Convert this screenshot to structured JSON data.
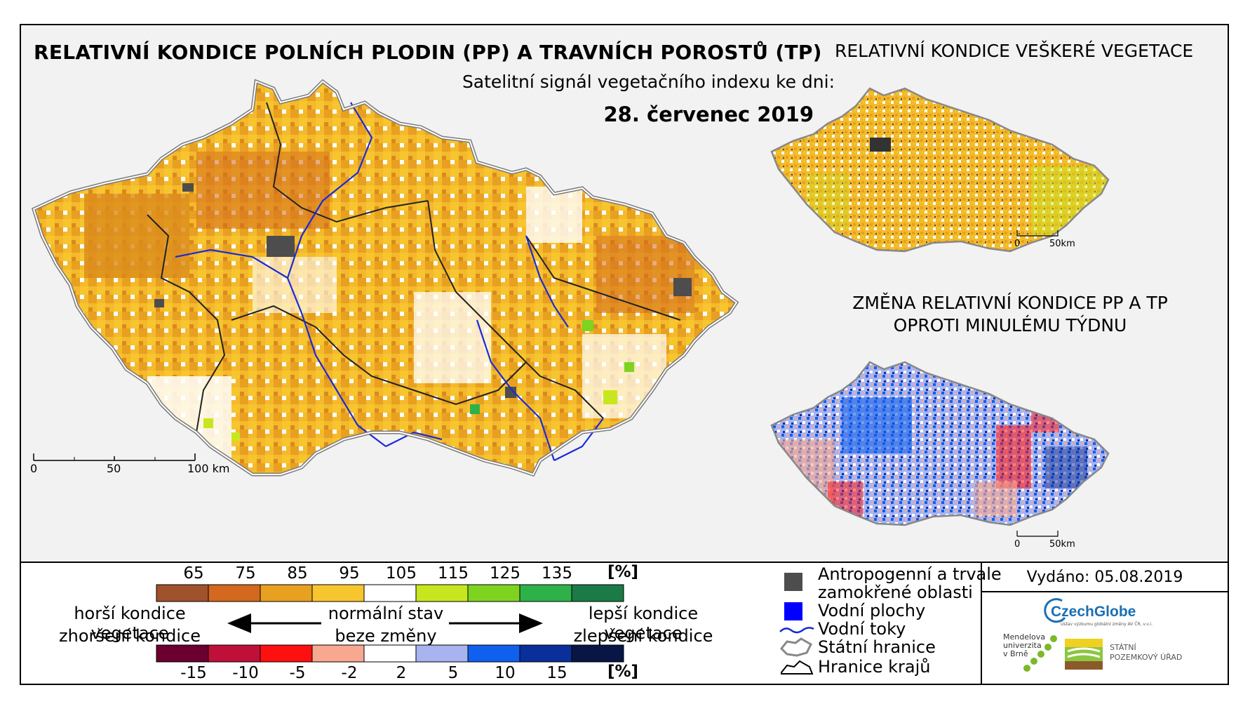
{
  "titles": {
    "main": "RELATIVNÍ KONDICE POLNÍCH PLODIN (PP) A TRAVNÍCH POROSTŮ (TP)",
    "all_vegetation": "RELATIVNÍ KONDICE VEŠKERÉ VEGETACE",
    "subtitle": "Satelitní signál vegetačního indexu ke dni:",
    "date": "28. červenec 2019",
    "change_line1": "ZMĚNA RELATIVNÍ KONDICE PP A TP",
    "change_line2": "OPROTI MINULÉMU TÝDNU"
  },
  "scale_bars": {
    "main": [
      "0",
      "50",
      "100 km"
    ],
    "small_top": [
      "0",
      "50km"
    ],
    "small_bottom": [
      "0",
      "50km"
    ]
  },
  "legend_condition": {
    "values": [
      "65",
      "75",
      "85",
      "95",
      "105",
      "115",
      "125",
      "135"
    ],
    "unit": "[%]",
    "colors": [
      "#a0522d",
      "#d2691e",
      "#e8a020",
      "#f7c52e",
      "#ffffff",
      "#c8e61e",
      "#7ed321",
      "#2fb14a",
      "#1b7a45"
    ]
  },
  "legend_change": {
    "values": [
      "-15",
      "-10",
      "-5",
      "-2",
      "2",
      "5",
      "10",
      "15"
    ],
    "unit": "[%]",
    "colors": [
      "#6b0030",
      "#c0103a",
      "#ff1010",
      "#f8a890",
      "#ffffff",
      "#a8b4f0",
      "#1060f0",
      "#0a2e9a",
      "#071645"
    ]
  },
  "legend_texts": {
    "worse_1": "horší kondice vegetace",
    "worse_2": "zhoršení kondice",
    "normal_1": "normální stav",
    "normal_2": "beze změny",
    "better_1": "lepší kondice vegetace",
    "better_2": "zlepšení kondice"
  },
  "key": {
    "anthropogenic_1": "Antropogenní a trvale",
    "anthropogenic_2": "zamokřené oblasti",
    "water_bodies": "Vodní plochy",
    "rivers": "Vodní toky",
    "state_border": "Státní hranice",
    "regions_border": "Hranice krajů",
    "anthropogenic_color": "#4d4d4d",
    "water_color": "#0000ff"
  },
  "issued": "Vydáno: 05.08.2019",
  "logos": {
    "czechglobe": "CzechGlobe",
    "czechglobe_sub": "Ústav výzkumu globální změny AV ČR, v.v.i.",
    "mendel_1": "Mendelova",
    "mendel_2": "univerzita",
    "mendel_3": "v Brně",
    "spu_1": "STÁTNÍ",
    "spu_2": "POZEMKOVÝ ÚŘAD"
  }
}
